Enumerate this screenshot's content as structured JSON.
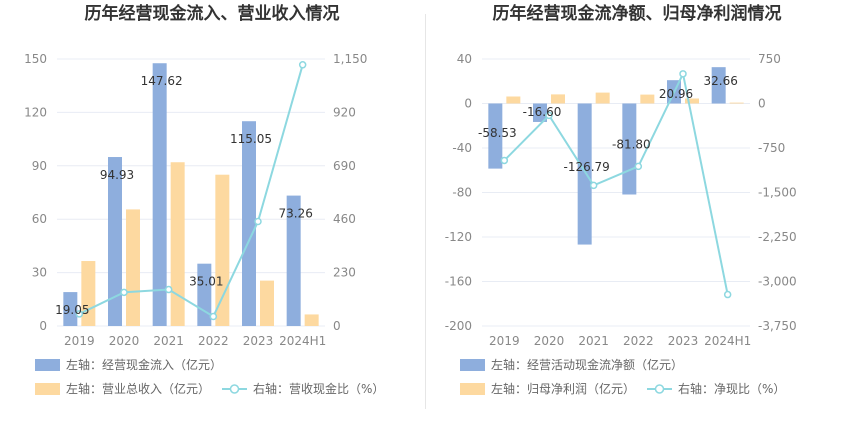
{
  "colors": {
    "bar_blue": "#8eaedd",
    "bar_orange": "#fdd9a0",
    "line_cyan": "#8dd8e0",
    "grid": "#e8ecf4",
    "text": "#333333",
    "axis_text": "#888888"
  },
  "chart_data": [
    {
      "type": "bar",
      "title": "历年经营现金流入、营业收入情况",
      "categories": [
        "2019",
        "2020",
        "2021",
        "2022",
        "2023",
        "2024H1"
      ],
      "left_axis": {
        "min": 0,
        "max": 150,
        "ticks": [
          "0",
          "30",
          "60",
          "90",
          "120",
          "150"
        ]
      },
      "right_axis": {
        "min": 0,
        "max": 1150,
        "ticks": [
          "0",
          "230",
          "460",
          "690",
          "920",
          "1,150"
        ]
      },
      "series": [
        {
          "name": "左轴：经营现金流入（亿元）",
          "type": "bar",
          "axis": "left",
          "color": "#8eaedd",
          "values": [
            19.05,
            94.93,
            147.62,
            35.01,
            115.05,
            73.26
          ],
          "labels": [
            "19.05",
            "94.93",
            "147.62",
            "35.01",
            "115.05",
            "73.26"
          ]
        },
        {
          "name": "左轴：营业总收入（亿元）",
          "type": "bar",
          "axis": "left",
          "color": "#fdd9a0",
          "values": [
            36.5,
            65.5,
            92,
            85,
            25.5,
            6.5
          ]
        },
        {
          "name": "右轴：营收现金比（%）",
          "type": "line",
          "axis": "right",
          "color": "#8dd8e0",
          "values": [
            52,
            145,
            157,
            41,
            450,
            1125
          ]
        }
      ],
      "grid": true,
      "legend_position": "bottom"
    },
    {
      "type": "bar",
      "title": "历年经营现金流净额、归母净利润情况",
      "categories": [
        "2019",
        "2020",
        "2021",
        "2022",
        "2023",
        "2024H1"
      ],
      "left_axis": {
        "min": -200,
        "max": 40,
        "ticks": [
          "-200",
          "-160",
          "-120",
          "-80",
          "-40",
          "0",
          "40"
        ]
      },
      "right_axis": {
        "min": -3750,
        "max": 750,
        "ticks": [
          "-3,750",
          "-3,000",
          "-2,250",
          "-1,500",
          "-750",
          "0",
          "750"
        ]
      },
      "series": [
        {
          "name": "左轴：经营活动现金流净额（亿元）",
          "type": "bar",
          "axis": "left",
          "color": "#8eaedd",
          "values": [
            -58.53,
            -16.6,
            -126.79,
            -81.8,
            20.96,
            32.66
          ],
          "labels": [
            "-58.53",
            "-16.60",
            "-126.79",
            "-81.80",
            "20.96",
            "32.66"
          ]
        },
        {
          "name": "左轴：归母净利润（亿元）",
          "type": "bar",
          "axis": "left",
          "color": "#fdd9a0",
          "values": [
            6.3,
            8.2,
            9.8,
            8.0,
            4.5,
            0.8
          ]
        },
        {
          "name": "右轴：净现比（%）",
          "type": "line",
          "axis": "right",
          "color": "#8dd8e0",
          "values": [
            -960,
            -200,
            -1380,
            -1060,
            500,
            -3220
          ]
        }
      ],
      "grid": true,
      "legend_position": "bottom"
    }
  ]
}
